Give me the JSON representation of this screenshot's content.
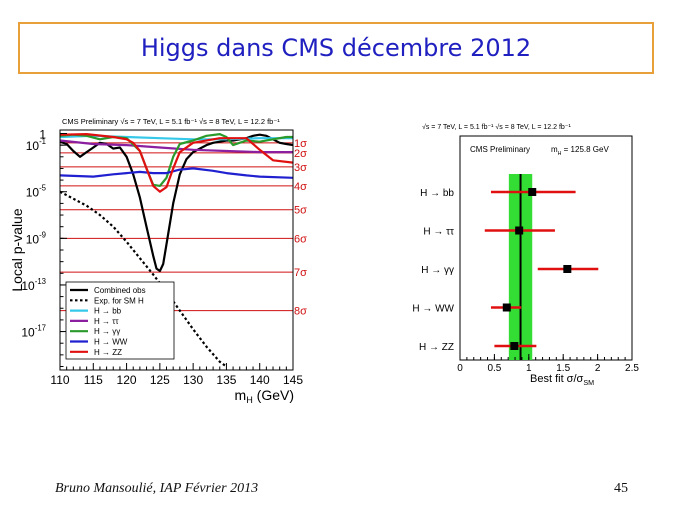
{
  "slide": {
    "title": "Higgs dans CMS décembre 2012",
    "footer_author": "Bruno Mansoulié,  IAP Février 2013",
    "page_number": "45",
    "accent_colors": {
      "title_border": "#e8a03a",
      "title_text": "#2020c0"
    }
  },
  "chart_data": [
    {
      "type": "line",
      "title": "CMS Preliminary",
      "header_parts": [
        "CMS Preliminary",
        "√s = 7 TeV, L = 5.1 fb⁻¹",
        "√s = 8 TeV, L = 12.2 fb⁻¹"
      ],
      "xlabel": "m",
      "xlabel_sub": "H",
      "xlabel_unit": "(GeV)",
      "ylabel": "Local p-value",
      "xlim": [
        110,
        145
      ],
      "x_ticks": [
        110,
        115,
        120,
        125,
        130,
        135,
        140,
        145
      ],
      "y_scale": "log",
      "y_ticks": [
        {
          "exp": 0,
          "label": "1"
        },
        {
          "exp": -1,
          "label": "10",
          "sup": "-1"
        },
        {
          "exp": -5,
          "label": "10",
          "sup": "-5"
        },
        {
          "exp": -9,
          "label": "10",
          "sup": "-9"
        },
        {
          "exp": -13,
          "label": "10",
          "sup": "-13"
        },
        {
          "exp": -17,
          "label": "10",
          "sup": "-17"
        }
      ],
      "sigma_lines": [
        {
          "label": "1σ",
          "log10p": -0.8
        },
        {
          "label": "2σ",
          "log10p": -1.66
        },
        {
          "label": "3σ",
          "log10p": -2.87
        },
        {
          "label": "4σ",
          "log10p": -4.5
        },
        {
          "label": "5σ",
          "log10p": -6.54
        },
        {
          "label": "6σ",
          "log10p": -9.0
        },
        {
          "label": "7σ",
          "log10p": -11.9
        },
        {
          "label": "8σ",
          "log10p": -15.2
        }
      ],
      "series": [
        {
          "name": "Combined obs",
          "color": "#000000",
          "dash": "solid",
          "x": [
            110,
            111,
            112,
            113,
            114,
            115,
            116,
            117,
            118,
            119,
            120,
            121,
            122,
            123,
            124,
            124.5,
            125,
            125.5,
            126,
            127,
            128,
            129,
            130,
            131,
            132,
            133,
            134,
            135,
            136,
            137,
            138,
            139,
            140,
            141,
            142,
            143,
            144,
            145
          ],
          "y": [
            -0.7,
            -0.9,
            -1.5,
            -2.0,
            -1.6,
            -1.2,
            -0.8,
            -0.9,
            -1.3,
            -1.2,
            -2.0,
            -3.5,
            -5.5,
            -8.0,
            -10.5,
            -11.6,
            -11.8,
            -11.2,
            -9.5,
            -6.0,
            -3.5,
            -2.2,
            -1.6,
            -1.3,
            -1.0,
            -0.8,
            -0.7,
            -0.6,
            -0.6,
            -0.5,
            -0.4,
            -0.2,
            -0.1,
            -0.2,
            -0.5,
            -0.8,
            -0.9,
            -1.0
          ]
        },
        {
          "name": "Exp. for SM H",
          "color": "#000000",
          "dash": "dotted",
          "x": [
            110,
            112,
            114,
            116,
            118,
            120,
            122,
            124,
            126,
            128,
            130,
            132,
            134,
            135
          ],
          "y": [
            -5.0,
            -5.6,
            -6.2,
            -7.0,
            -8.0,
            -9.3,
            -10.7,
            -12.1,
            -13.6,
            -15.2,
            -16.8,
            -18.3,
            -19.6,
            -20.0
          ]
        },
        {
          "name": "H → bb",
          "color": "#35c8e8",
          "dash": "solid",
          "x": [
            110,
            115,
            120,
            125,
            130,
            135,
            140,
            145
          ],
          "y": [
            -0.3,
            -0.2,
            -0.3,
            -0.4,
            -0.5,
            -0.5,
            -0.4,
            -0.4
          ]
        },
        {
          "name": "H → ττ",
          "color": "#8a1fa0",
          "dash": "solid",
          "x": [
            110,
            115,
            120,
            125,
            130,
            135,
            140,
            145
          ],
          "y": [
            -0.6,
            -0.9,
            -1.0,
            -1.2,
            -1.4,
            -1.5,
            -1.6,
            -1.6
          ]
        },
        {
          "name": "H → γγ",
          "color": "#2a9a2a",
          "dash": "solid",
          "x": [
            110,
            112,
            114,
            116,
            118,
            120,
            122,
            123,
            124,
            125,
            126,
            127,
            128,
            130,
            132,
            134,
            135,
            136,
            138,
            140,
            142,
            144,
            145
          ],
          "y": [
            -0.2,
            -0.1,
            -0.2,
            -0.5,
            -0.3,
            -0.4,
            -1.5,
            -3.0,
            -4.4,
            -4.5,
            -3.8,
            -2.0,
            -0.9,
            -0.6,
            -0.2,
            -0.05,
            -0.3,
            -1.0,
            -0.6,
            -0.7,
            -0.5,
            -0.3,
            -0.3
          ]
        },
        {
          "name": "H → WW",
          "color": "#2020d0",
          "dash": "solid",
          "x": [
            110,
            115,
            118,
            120,
            122,
            124,
            126,
            128,
            130,
            133,
            135,
            138,
            140,
            145
          ],
          "y": [
            -3.6,
            -3.7,
            -3.5,
            -3.4,
            -3.3,
            -3.4,
            -3.4,
            -3.1,
            -3.0,
            -3.2,
            -3.4,
            -3.6,
            -3.7,
            -3.8
          ]
        },
        {
          "name": "H → ZZ",
          "color": "#e01010",
          "dash": "solid",
          "x": [
            110,
            114,
            118,
            120,
            121,
            122,
            123,
            124,
            125,
            126,
            127,
            128,
            130,
            134,
            138,
            140,
            142,
            145
          ],
          "y": [
            -0.1,
            -0.05,
            -0.3,
            -0.5,
            -0.8,
            -1.5,
            -3.0,
            -4.5,
            -5.0,
            -4.6,
            -3.0,
            -1.6,
            -0.8,
            -0.4,
            -0.4,
            -1.4,
            -2.3,
            -2.5
          ]
        }
      ]
    },
    {
      "type": "scatter",
      "title": "CMS Preliminary",
      "header_parts": [
        "√s = 7 TeV, L =  5.1 fb⁻¹",
        "√s = 8 TeV, L = 12.2 fb⁻¹"
      ],
      "mass_label": "m",
      "mass_label_sub": "H",
      "mass_label_value": " = 125.8 GeV",
      "xlabel": "Best fit σ/σ",
      "xlabel_sub": "SM",
      "xlim": [
        0,
        2.5
      ],
      "x_ticks": [
        0,
        0.5,
        1,
        1.5,
        2,
        2.5
      ],
      "combined_best_fit": 0.88,
      "combined_band": [
        0.71,
        1.05
      ],
      "band_color": "#33dd33",
      "categories": [
        "H → bb",
        "H → ττ",
        "H → γγ",
        "H → WW",
        "H → ZZ"
      ],
      "values": [
        1.05,
        0.86,
        1.56,
        0.68,
        0.79
      ],
      "errors_low": [
        0.6,
        0.5,
        0.43,
        0.23,
        0.29
      ],
      "errors_high": [
        0.63,
        0.52,
        0.45,
        0.21,
        0.32
      ]
    }
  ]
}
